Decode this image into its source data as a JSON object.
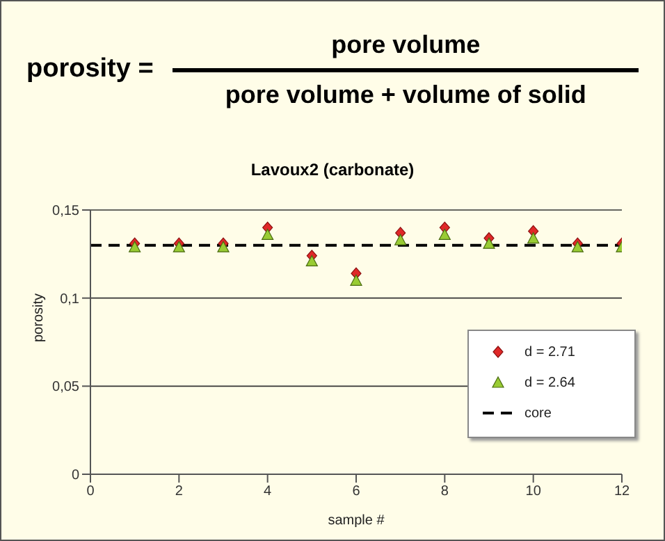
{
  "chart_data": {
    "type": "scatter",
    "title": "Lavoux2 (carbonate)",
    "xlabel": "sample #",
    "ylabel": "porosity",
    "annotations": [
      "porosity =",
      "pore volume",
      "pore volume + volume of solid"
    ],
    "x": [
      1,
      2,
      3,
      4,
      5,
      6,
      7,
      8,
      9,
      10,
      11,
      12
    ],
    "series": [
      {
        "name": "d = 2.71",
        "color": "#e02828",
        "marker": "diamond",
        "values": [
          0.131,
          0.131,
          0.131,
          0.14,
          0.124,
          0.114,
          0.137,
          0.14,
          0.134,
          0.138,
          0.131,
          0.131
        ]
      },
      {
        "name": "d = 2.64",
        "color": "#99cc33",
        "marker": "triangle",
        "values": [
          0.129,
          0.129,
          0.129,
          0.136,
          0.121,
          0.11,
          0.133,
          0.136,
          0.131,
          0.134,
          0.129,
          0.129
        ]
      }
    ],
    "ref_lines": [
      {
        "axis": "y",
        "value": 0.13,
        "label": "core",
        "line_style": "dashed",
        "color": "#000000"
      }
    ],
    "xlim": [
      0,
      12
    ],
    "xticks": [
      0,
      2,
      4,
      6,
      8,
      10,
      12
    ],
    "ylim": [
      0,
      0.15
    ],
    "yticks": [
      {
        "value": 0,
        "label": "0"
      },
      {
        "value": 0.05,
        "label": "0,05"
      },
      {
        "value": 0.1,
        "label": "0,1"
      },
      {
        "value": 0.15,
        "label": "0,15"
      }
    ],
    "grid": "y",
    "legend": "bottom right"
  }
}
